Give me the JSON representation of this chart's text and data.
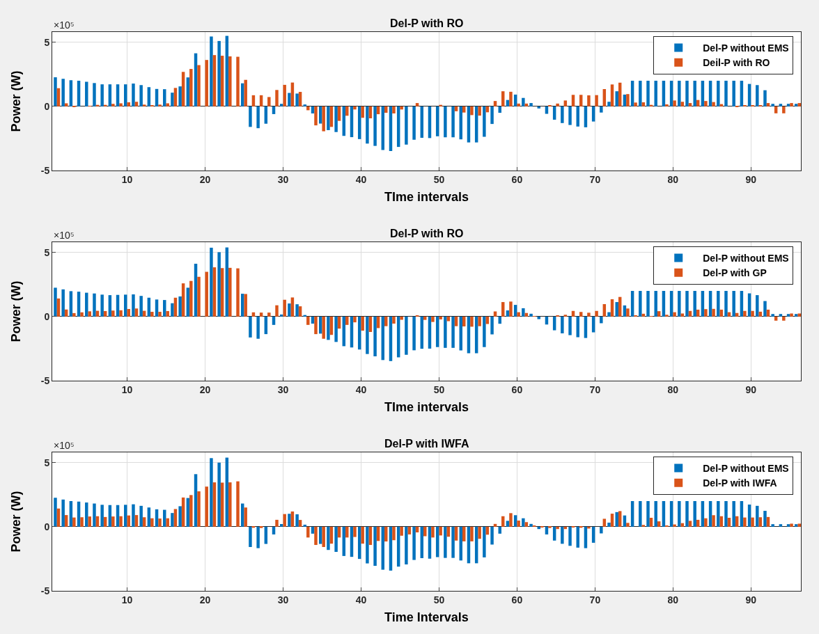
{
  "chart_data": [
    {
      "type": "bar",
      "title": "Del-P with RO",
      "xlabel": "TIme intervals",
      "ylabel": "Power (W)",
      "annotations": [
        "×10⁵"
      ],
      "x": [
        1,
        2,
        3,
        4,
        5,
        6,
        7,
        8,
        9,
        10,
        11,
        12,
        13,
        14,
        15,
        16,
        17,
        18,
        19,
        20,
        21,
        22,
        23,
        24,
        25,
        26,
        27,
        28,
        29,
        30,
        31,
        32,
        33,
        34,
        35,
        36,
        37,
        38,
        39,
        40,
        41,
        42,
        43,
        44,
        45,
        46,
        47,
        48,
        49,
        50,
        51,
        52,
        53,
        54,
        55,
        56,
        57,
        58,
        59,
        60,
        61,
        62,
        63,
        64,
        65,
        66,
        67,
        68,
        69,
        70,
        71,
        72,
        73,
        74,
        75,
        76,
        77,
        78,
        79,
        80,
        81,
        82,
        83,
        84,
        85,
        86,
        87,
        88,
        89,
        90,
        91,
        92,
        93,
        94,
        95,
        96
      ],
      "series": [
        {
          "name": "Del-P without EMS",
          "color": "#0072bd",
          "values": [
            2.27,
            2.15,
            2.04,
            2.0,
            1.92,
            1.82,
            1.72,
            1.72,
            1.72,
            1.72,
            1.78,
            1.66,
            1.5,
            1.36,
            1.34,
            1.07,
            1.56,
            2.26,
            4.14,
            null,
            5.45,
            5.1,
            5.5,
            null,
            1.8,
            -1.6,
            -1.7,
            -1.35,
            -0.6,
            0.2,
            1.05,
            1.0,
            0.15,
            -0.55,
            -1.34,
            -1.85,
            -2.0,
            -2.3,
            -2.4,
            -2.55,
            -2.9,
            -3.08,
            -3.4,
            -3.48,
            -3.16,
            -2.98,
            -2.6,
            -2.45,
            -2.47,
            -2.33,
            -2.41,
            -2.41,
            -2.57,
            -2.81,
            -2.81,
            -2.37,
            -1.37,
            -0.5,
            0.5,
            0.92,
            0.66,
            0.26,
            -0.16,
            -0.58,
            -1.04,
            -1.3,
            -1.45,
            -1.57,
            -1.63,
            -1.18,
            -0.48,
            0.36,
            1.18,
            0.92,
            2.0,
            2.0,
            2.0,
            2.0,
            2.0,
            2.0,
            2.0,
            2.0,
            2.0,
            2.0,
            2.0,
            2.0,
            2.0,
            2.0,
            2.0,
            1.75,
            1.66,
            1.26,
            0.2,
            0.2,
            0.2,
            0.2
          ]
        },
        {
          "name": "Deil-P with RO",
          "color": "#d95319",
          "values": [
            1.42,
            0.24,
            -0.05,
            0,
            0.04,
            0.12,
            0.12,
            0.2,
            0.24,
            0.32,
            0.36,
            0.14,
            0.1,
            0.14,
            0.24,
            1.44,
            2.69,
            2.92,
            3.22,
            3.62,
            4.0,
            3.95,
            3.9,
            3.87,
            2.07,
            0.87,
            0.87,
            0.73,
            1.28,
            1.68,
            1.86,
            1.13,
            -0.3,
            -1.48,
            -1.94,
            -1.6,
            -1.13,
            -0.73,
            -0.24,
            -0.89,
            -0.93,
            -0.61,
            -0.5,
            -0.55,
            -0.24,
            0,
            0.26,
            0,
            0,
            0.12,
            0,
            -0.38,
            -0.48,
            -0.68,
            -0.72,
            -0.46,
            0.42,
            1.18,
            1.14,
            0.22,
            0.22,
            0,
            0,
            0.1,
            0.22,
            0.46,
            0.9,
            0.9,
            0.86,
            0.88,
            1.35,
            1.71,
            1.85,
            0.96,
            0.3,
            0.32,
            0.12,
            0,
            0.16,
            0.46,
            0.36,
            0.26,
            0.5,
            0.42,
            0.34,
            0.18,
            0,
            -0.04,
            0.1,
            0.1,
            0.1,
            0.26,
            -0.54,
            -0.54,
            0.26,
            0.26
          ]
        }
      ],
      "xlim": [
        0.4,
        96.4
      ],
      "ylim": [
        -5,
        5.8
      ],
      "xticks": [
        10,
        20,
        30,
        40,
        50,
        60,
        70,
        80,
        90
      ],
      "yticks": [
        -5,
        0,
        5
      ],
      "grid": true,
      "legend": "top right"
    },
    {
      "type": "bar",
      "title": "Del-P with RO",
      "xlabel": "TIme intervals",
      "ylabel": "Power (W)",
      "annotations": [
        "×10⁵"
      ],
      "x": [
        1,
        2,
        3,
        4,
        5,
        6,
        7,
        8,
        9,
        10,
        11,
        12,
        13,
        14,
        15,
        16,
        17,
        18,
        19,
        20,
        21,
        22,
        23,
        24,
        25,
        26,
        27,
        28,
        29,
        30,
        31,
        32,
        33,
        34,
        35,
        36,
        37,
        38,
        39,
        40,
        41,
        42,
        43,
        44,
        45,
        46,
        47,
        48,
        49,
        50,
        51,
        52,
        53,
        54,
        55,
        56,
        57,
        58,
        59,
        60,
        61,
        62,
        63,
        64,
        65,
        66,
        67,
        68,
        69,
        70,
        71,
        72,
        73,
        74,
        75,
        76,
        77,
        78,
        79,
        80,
        81,
        82,
        83,
        84,
        85,
        86,
        87,
        88,
        89,
        90,
        91,
        92,
        93,
        94,
        95,
        96
      ],
      "series": [
        {
          "name": "Del-P without EMS",
          "color": "#0072bd",
          "values": [
            2.25,
            2.12,
            1.98,
            1.94,
            1.86,
            1.8,
            1.71,
            1.67,
            1.69,
            1.71,
            1.73,
            1.61,
            1.47,
            1.33,
            1.29,
            1.04,
            1.57,
            2.25,
            4.12,
            null,
            5.37,
            5.02,
            5.39,
            null,
            1.78,
            -1.63,
            -1.73,
            -1.37,
            -0.65,
            0.16,
            1.02,
            0.96,
            0.12,
            -0.55,
            -1.33,
            -1.82,
            -1.98,
            -2.31,
            -2.41,
            -2.57,
            -2.92,
            -3.1,
            -3.39,
            -3.47,
            -3.18,
            -2.98,
            -2.63,
            -2.51,
            -2.5,
            -2.38,
            -2.44,
            -2.44,
            -2.64,
            -2.86,
            -2.86,
            -2.38,
            -1.39,
            -0.56,
            0.48,
            0.91,
            0.65,
            0.22,
            -0.2,
            -0.62,
            -1.07,
            -1.31,
            -1.45,
            -1.61,
            -1.67,
            -1.23,
            -0.52,
            0.34,
            1.13,
            0.87,
            2.0,
            2.0,
            2.0,
            2.0,
            2.0,
            2.0,
            2.0,
            2.0,
            2.0,
            2.0,
            2.0,
            2.0,
            2.0,
            2.0,
            2.0,
            1.81,
            1.67,
            1.21,
            0.2,
            0.2,
            0.2,
            0.2
          ]
        },
        {
          "name": "Del-P with GP",
          "color": "#d95319",
          "values": [
            1.41,
            0.55,
            0.27,
            0.33,
            0.41,
            0.45,
            0.43,
            0.47,
            0.49,
            0.59,
            0.63,
            0.45,
            0.37,
            0.37,
            0.43,
            1.47,
            2.59,
            2.78,
            3.1,
            3.49,
            3.84,
            3.78,
            3.8,
            3.76,
            1.76,
            0.33,
            0.31,
            0.31,
            0.88,
            1.31,
            1.49,
            0.8,
            -0.65,
            -1.37,
            -1.73,
            -1.43,
            -0.94,
            -0.65,
            -0.45,
            -1.1,
            -1.2,
            -0.9,
            -0.75,
            -0.55,
            -0.25,
            0,
            0.1,
            -0.26,
            -0.42,
            -0.22,
            -0.36,
            -0.75,
            -0.77,
            -0.79,
            -0.75,
            -0.58,
            0.4,
            1.13,
            1.17,
            0.34,
            0.28,
            0.02,
            0,
            0,
            0.08,
            0.14,
            0.44,
            0.36,
            0.3,
            0.44,
            0.97,
            1.35,
            1.53,
            0.63,
            0.1,
            0.22,
            0.04,
            0.42,
            0.14,
            0.34,
            0.24,
            0.44,
            0.54,
            0.58,
            0.6,
            0.54,
            0.34,
            0.28,
            0.44,
            0.44,
            0.38,
            0.54,
            -0.32,
            -0.32,
            0.24,
            0.24
          ]
        }
      ],
      "xlim": [
        0.4,
        96.4
      ],
      "ylim": [
        -5,
        5.8
      ],
      "xticks": [
        10,
        20,
        30,
        40,
        50,
        60,
        70,
        80,
        90
      ],
      "yticks": [
        -5,
        0,
        5
      ],
      "grid": true,
      "legend": "top right"
    },
    {
      "type": "bar",
      "title": "Del-P with IWFA",
      "xlabel": "Time Intervals",
      "ylabel": "Power (W)",
      "annotations": [
        "×10⁵"
      ],
      "x": [
        1,
        2,
        3,
        4,
        5,
        6,
        7,
        8,
        9,
        10,
        11,
        12,
        13,
        14,
        15,
        16,
        17,
        18,
        19,
        20,
        21,
        22,
        23,
        24,
        25,
        26,
        27,
        28,
        29,
        30,
        31,
        32,
        33,
        34,
        35,
        36,
        37,
        38,
        39,
        40,
        41,
        42,
        43,
        44,
        45,
        46,
        47,
        48,
        49,
        50,
        51,
        52,
        53,
        54,
        55,
        56,
        57,
        58,
        59,
        60,
        61,
        62,
        63,
        64,
        65,
        66,
        67,
        68,
        69,
        70,
        71,
        72,
        73,
        74,
        75,
        76,
        77,
        78,
        79,
        80,
        81,
        82,
        83,
        84,
        85,
        86,
        87,
        88,
        89,
        90,
        91,
        92,
        93,
        94,
        95,
        96
      ],
      "series": [
        {
          "name": "Del-P without EMS",
          "color": "#0072bd",
          "values": [
            2.26,
            2.12,
            2.0,
            1.96,
            1.89,
            1.81,
            1.71,
            1.69,
            1.69,
            1.71,
            1.75,
            1.63,
            1.5,
            1.36,
            1.32,
            1.07,
            1.6,
            2.24,
            4.1,
            null,
            5.35,
            5.0,
            5.39,
            null,
            1.81,
            -1.58,
            -1.67,
            -1.34,
            -0.6,
            0.21,
            1.01,
            0.97,
            0.16,
            -0.54,
            -1.34,
            -1.81,
            -1.96,
            -2.28,
            -2.35,
            -2.51,
            -2.86,
            -3.05,
            -3.35,
            -3.42,
            -3.11,
            -2.94,
            -2.59,
            -2.45,
            -2.49,
            -2.37,
            -2.43,
            -2.43,
            -2.63,
            -2.85,
            -2.85,
            -2.39,
            -1.39,
            -0.54,
            0.46,
            0.9,
            0.66,
            0.22,
            -0.18,
            -0.6,
            -1.08,
            -1.33,
            -1.49,
            -1.63,
            -1.67,
            -1.25,
            -0.52,
            0.32,
            1.14,
            0.88,
            2.0,
            2.0,
            2.0,
            2.0,
            2.0,
            2.0,
            2.0,
            2.0,
            2.0,
            2.0,
            2.0,
            2.0,
            2.0,
            2.0,
            2.0,
            1.73,
            1.63,
            1.24,
            0.2,
            0.2,
            0.2,
            0.2
          ]
        },
        {
          "name": "Del-P with IWFA",
          "color": "#d95319",
          "values": [
            1.42,
            0.91,
            0.72,
            0.74,
            0.8,
            0.82,
            0.76,
            0.8,
            0.82,
            0.88,
            0.91,
            0.74,
            0.66,
            0.64,
            0.66,
            1.38,
            2.28,
            2.47,
            2.76,
            3.13,
            3.46,
            3.44,
            3.46,
            3.54,
            1.5,
            -0.08,
            -0.1,
            0,
            0.54,
            0.99,
            1.19,
            0.53,
            -0.84,
            -1.42,
            -1.58,
            -1.32,
            -0.84,
            -0.84,
            -0.8,
            -1.32,
            -1.42,
            -1.11,
            -1.15,
            -1.05,
            -0.7,
            -0.6,
            -0.44,
            -0.74,
            -0.84,
            -0.68,
            -0.78,
            -1.08,
            -1.14,
            -1.14,
            -0.94,
            -0.62,
            0.22,
            0.82,
            1.06,
            0.48,
            0.36,
            0.06,
            -0.04,
            -0.1,
            -0.18,
            -0.18,
            -0.06,
            -0.08,
            -0.14,
            0,
            0.62,
            1.02,
            1.22,
            0.3,
            0,
            0.14,
            0.7,
            0.42,
            0.06,
            0.18,
            0.28,
            0.46,
            0.54,
            0.66,
            0.9,
            0.82,
            0.7,
            0.82,
            0.72,
            0.72,
            0.74,
            0.76,
            0,
            0,
            0.24,
            0.24
          ]
        }
      ],
      "xlim": [
        0.4,
        96.4
      ],
      "ylim": [
        -5,
        5.8
      ],
      "xticks": [
        10,
        20,
        30,
        40,
        50,
        60,
        70,
        80,
        90
      ],
      "yticks": [
        -5,
        0,
        5
      ],
      "grid": true,
      "legend": "top right"
    }
  ]
}
